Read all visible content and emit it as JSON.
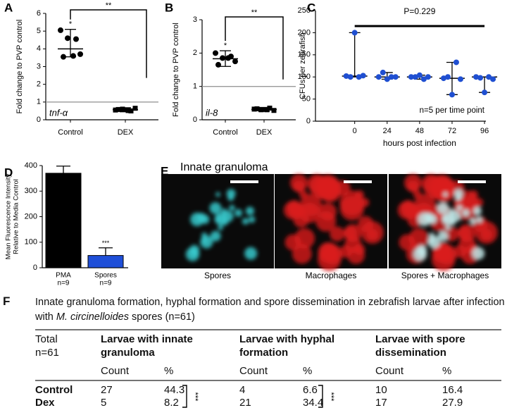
{
  "chart_data": [
    {
      "panel": "A",
      "type": "dot",
      "ylabel": "Fold change to PVP control",
      "ylim": [
        0,
        6
      ],
      "yticks": [
        0,
        1,
        2,
        3,
        4,
        5,
        6
      ],
      "reference_line": 1,
      "categories": [
        "Control",
        "DEX"
      ],
      "points": [
        [
          5.05,
          4.6,
          4.55,
          3.7,
          3.55,
          3.6
        ],
        [
          0.55,
          0.6,
          0.5,
          0.65,
          0.58,
          0.52
        ]
      ],
      "center_values": [
        4.0,
        0.57
      ],
      "low_values": [
        3.55,
        0.45
      ],
      "high_values": [
        5.1,
        0.68
      ],
      "colors": [
        "#000000",
        "#000000"
      ],
      "markers": [
        "circle",
        "square"
      ],
      "gene_label": "tnf-α",
      "control_mark": "*",
      "comparison_mark": "**"
    },
    {
      "panel": "B",
      "type": "dot",
      "ylabel": "Fold change to PVP control",
      "ylim": [
        0,
        3
      ],
      "yticks": [
        0,
        1,
        2,
        3
      ],
      "reference_line": 1,
      "categories": [
        "Control",
        "DEX"
      ],
      "points": [
        [
          2.0,
          1.85,
          1.9,
          1.75,
          1.65,
          1.85
        ],
        [
          0.32,
          0.3,
          0.35,
          0.28,
          0.33,
          0.3
        ]
      ],
      "center_values": [
        1.83,
        0.31
      ],
      "low_values": [
        1.6,
        0.25
      ],
      "high_values": [
        2.07,
        0.37
      ],
      "colors": [
        "#000000",
        "#000000"
      ],
      "markers": [
        "circle",
        "square"
      ],
      "gene_label": "il-8",
      "control_mark": "*",
      "comparison_mark": "**"
    },
    {
      "panel": "C",
      "type": "dot",
      "ylabel": "CFUs per zebrafish",
      "xlabel": "hours post infection",
      "ylim": [
        0,
        250
      ],
      "yticks": [
        0,
        50,
        100,
        150,
        200,
        250
      ],
      "x": [
        0,
        24,
        48,
        72,
        96
      ],
      "xlim": [
        -29,
        97
      ],
      "xticks": [
        0,
        24,
        48,
        72,
        96
      ],
      "points": [
        [
          102,
          100,
          200,
          100,
          103
        ],
        [
          100,
          110,
          95,
          100,
          100
        ],
        [
          100,
          100,
          104,
          95,
          100
        ],
        [
          97,
          100,
          60,
          133,
          95
        ],
        [
          100,
          98,
          65,
          100,
          95
        ]
      ],
      "center_values": [
        102,
        100,
        100,
        97,
        100
      ],
      "low_values": [
        100,
        95,
        95,
        60,
        65
      ],
      "high_values": [
        200,
        110,
        104,
        133,
        100
      ],
      "color": "#1f4fd1",
      "p_value": "P=0.229",
      "note": "n=5 per time point"
    },
    {
      "panel": "D",
      "type": "bar",
      "ylabel": [
        "Mean Fluorescence Intensity",
        "Relative to Media Control"
      ],
      "ylim": [
        0,
        400
      ],
      "yticks": [
        0,
        100,
        200,
        300,
        400
      ],
      "categories": [
        "PMA",
        "Spores"
      ],
      "sublabels": [
        "n=9",
        "n=9"
      ],
      "values": [
        370,
        48
      ],
      "errors": [
        28,
        30
      ],
      "colors": [
        "#000000",
        "#1f4fd8"
      ],
      "significance": "***"
    }
  ],
  "figure_e": {
    "panel": "E",
    "title": "Innate granuloma",
    "captions": [
      "Spores",
      "Macrophages",
      "Spores + Macrophages"
    ]
  },
  "table_f": {
    "panel": "F",
    "title": [
      "Innate granuloma formation, hyphal formation and spore dissemination in  zebrafish larvae after infection with ",
      "M. circinelloides",
      " spores (n=61)"
    ],
    "corner": "Total n=61",
    "groups": [
      "Larvae with innate granuloma",
      "Larvae with hyphal formation",
      "Larvae with spore dissemination"
    ],
    "subheaders": [
      "Count",
      "%",
      "Count",
      "%",
      "Count",
      "%"
    ],
    "rows": [
      [
        "Control",
        "27",
        "44.3",
        "4",
        "6.6",
        "10",
        "16.4"
      ],
      [
        "Dex",
        "5",
        "8.2",
        "21",
        "34.4",
        "17",
        "27.9"
      ]
    ],
    "significance": [
      "***",
      "***"
    ]
  }
}
